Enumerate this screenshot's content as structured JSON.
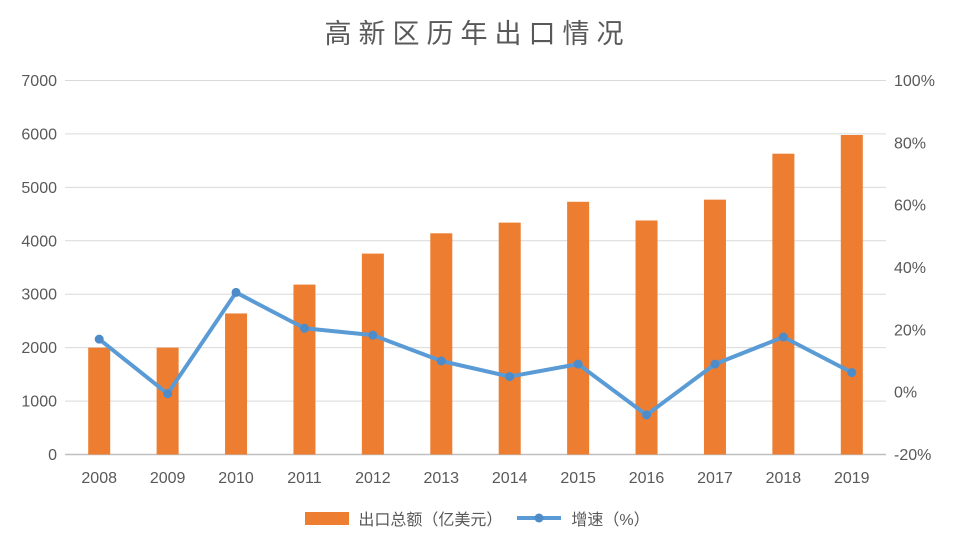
{
  "chart_data": {
    "type": "combo",
    "title": "高新区历年出口情况",
    "categories": [
      "2008",
      "2009",
      "2010",
      "2011",
      "2012",
      "2013",
      "2014",
      "2015",
      "2016",
      "2017",
      "2018",
      "2019"
    ],
    "series": [
      {
        "name": "出口总额（亿美元）",
        "type": "bar",
        "axis": "left",
        "values": [
          2000,
          2000,
          2640,
          3180,
          3760,
          4140,
          4340,
          4730,
          4380,
          4770,
          5630,
          5980
        ]
      },
      {
        "name": "增速（%）",
        "type": "line",
        "axis": "right",
        "values": [
          17,
          -0.5,
          32,
          20.5,
          18.3,
          10,
          5,
          9,
          -7.3,
          9,
          17.7,
          6.3
        ]
      }
    ],
    "left_axis": {
      "min": 0,
      "max": 7000,
      "step": 1000,
      "tick_labels": [
        "0",
        "1000",
        "2000",
        "3000",
        "4000",
        "5000",
        "6000",
        "7000"
      ]
    },
    "right_axis": {
      "min": -20,
      "max": 100,
      "step": 20,
      "tick_labels": [
        "-20%",
        "0%",
        "20%",
        "40%",
        "60%",
        "80%",
        "100%"
      ]
    },
    "grid": true,
    "legend_position": "bottom",
    "colors": {
      "bar": "#ED7D31",
      "line": "#5B9BD5",
      "marker": "#4D8CC9",
      "grid": "#D9D9D9",
      "axis_line": "#BFBFBF",
      "text": "#595959"
    }
  }
}
